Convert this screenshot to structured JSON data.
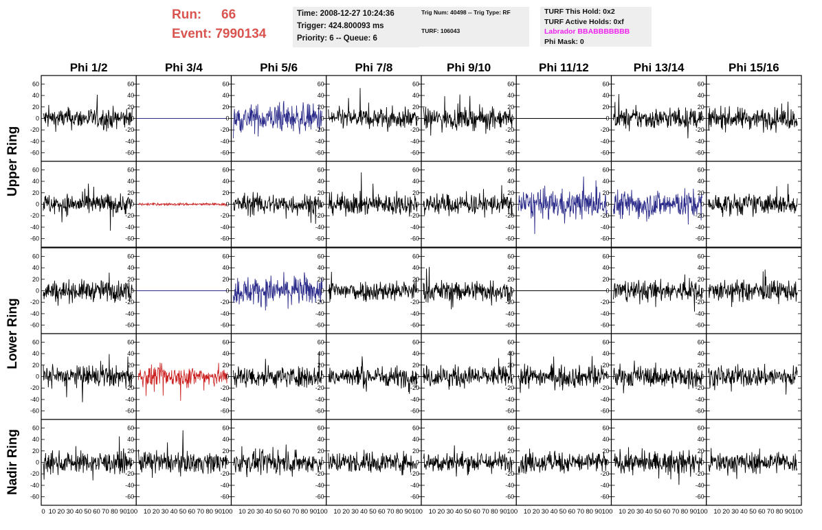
{
  "header": {
    "run_label": "Run:",
    "run_value": "66",
    "event_label": "Event:",
    "event_value": "7990134",
    "time": "Time: 2008-12-27 10:24:36",
    "trigger": "Trigger: 424.800093 ms",
    "priority": "Priority: 6 -- Queue: 6",
    "trig_num": "Trig Num: 40498 -- Trig Type: RF",
    "turf": "TURF: 106043",
    "turf_this_hold": "TURF This Hold: 0x2",
    "turf_active_holds": "TURF Active Holds: 0xf",
    "labrador": "Labrador BBABBBBBBB",
    "phi_mask": "Phi Mask: 0"
  },
  "colors": {
    "header_red": "#d9534f",
    "labrador_magenta": "#ee22ee",
    "trace_black": "#000000",
    "trace_blue": "#2a2a8a",
    "trace_red": "#cc2222"
  },
  "phi_labels": [
    "Phi 1/2",
    "Phi 3/4",
    "Phi 5/6",
    "Phi 7/8",
    "Phi 9/10",
    "Phi 11/12",
    "Phi 13/14",
    "Phi 15/16"
  ],
  "ring_labels": [
    "Upper Ring",
    "Lower Ring",
    "Nadir Ring"
  ],
  "y_ticks": [
    "60",
    "40",
    "20",
    "0",
    "-20",
    "-40",
    "-60"
  ],
  "x_ticks": [
    "0",
    "10",
    "20",
    "30",
    "40",
    "50",
    "60",
    "70",
    "80",
    "90",
    "100"
  ],
  "panels": [
    [
      "black",
      "flat-blue",
      "blue",
      "black",
      "black",
      "flat-black",
      "black",
      "black"
    ],
    [
      "black",
      "red-small",
      "black",
      "black",
      "black",
      "blue",
      "blue",
      "black"
    ],
    [
      "black",
      "flat-blue",
      "blue",
      "black",
      "black",
      "flat-black",
      "black",
      "black"
    ],
    [
      "black",
      "red",
      "black",
      "black",
      "black",
      "black",
      "black",
      "black"
    ],
    [
      "black",
      "black",
      "black",
      "black",
      "black",
      "black",
      "black",
      "black"
    ]
  ],
  "chart_data": {
    "type": "line",
    "columns": [
      "Phi 1/2",
      "Phi 3/4",
      "Phi 5/6",
      "Phi 7/8",
      "Phi 9/10",
      "Phi 11/12",
      "Phi 13/14",
      "Phi 15/16"
    ],
    "rows": [
      "Upper Ring",
      "Upper Ring",
      "Lower Ring",
      "Lower Ring",
      "Nadir Ring"
    ],
    "xlim": [
      0,
      100
    ],
    "ylim": [
      -70,
      70
    ],
    "grid": false
  }
}
